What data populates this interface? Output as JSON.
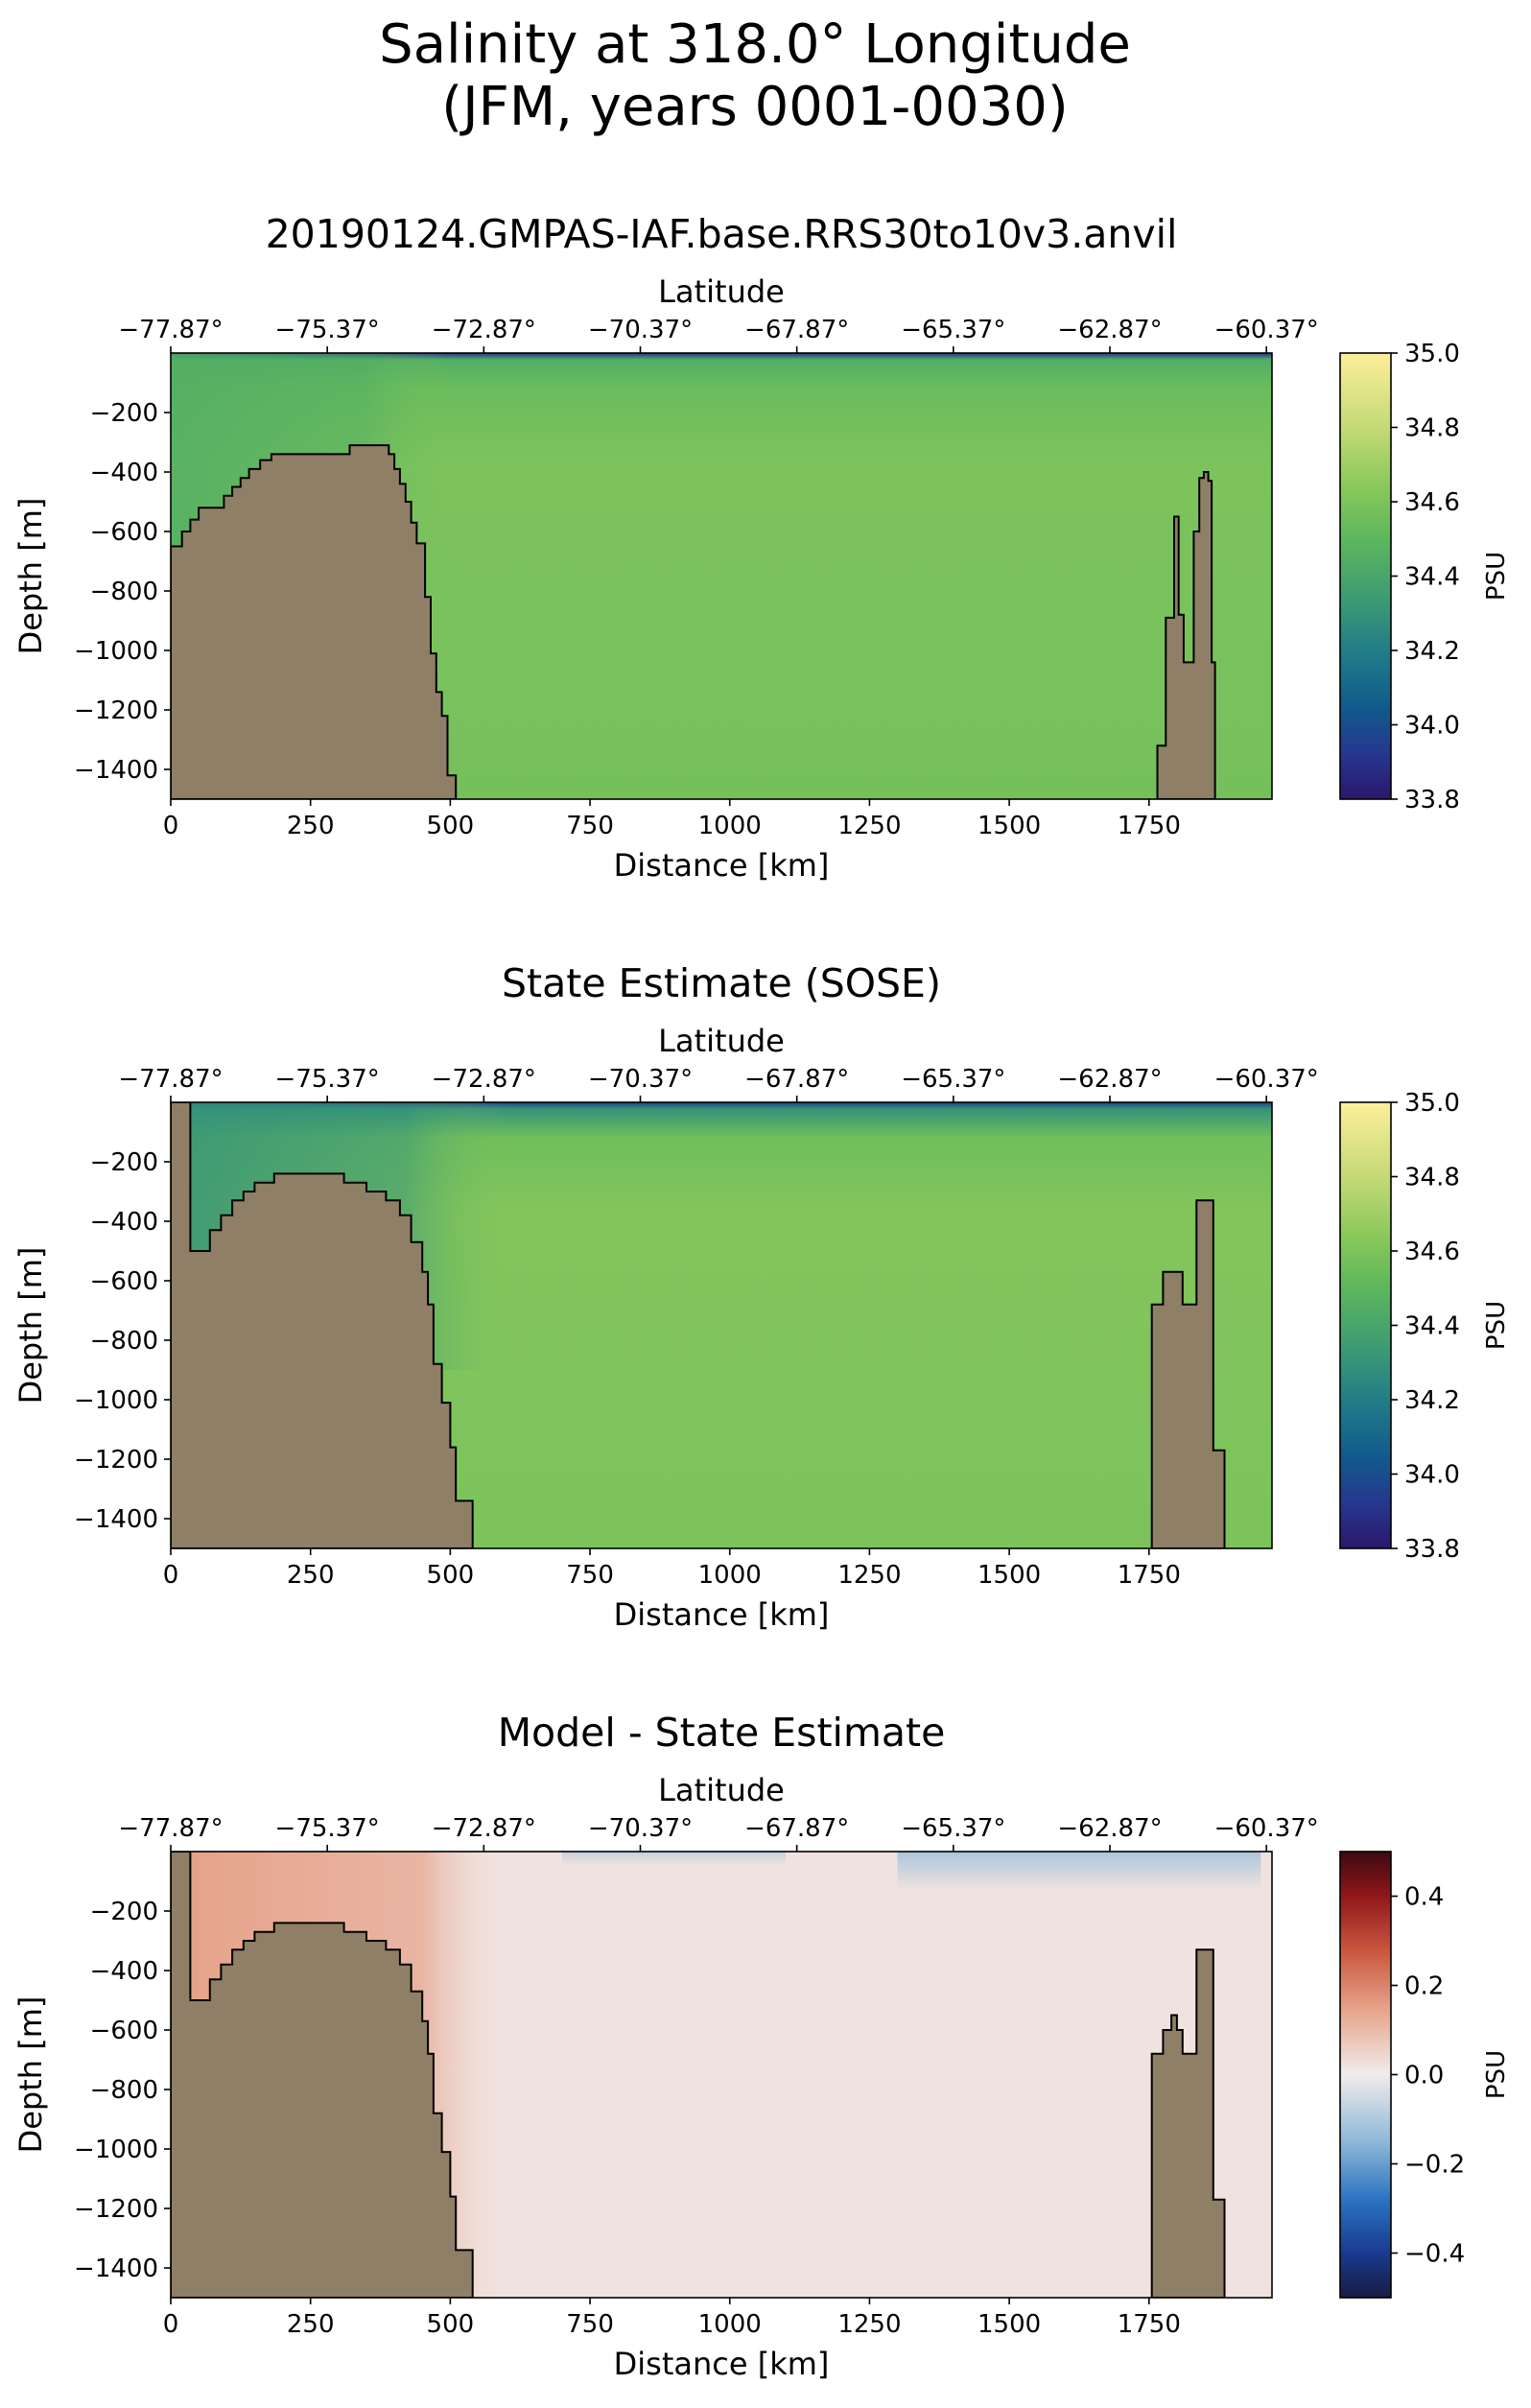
{
  "figure": {
    "title_line1": "Salinity at 318.0° Longitude",
    "title_line2": "(JFM, years 0001-0030)"
  },
  "colors": {
    "land": "#8f7f66",
    "haline_low": "#2a186c",
    "haline_mid": "#3d9b74",
    "haline_field": "#6bc25f",
    "haline_high": "#fdef9a",
    "balance_low": "#181c43",
    "balance_mid": "#f1ecec",
    "balance_high": "#3c0912"
  },
  "chart_data": [
    {
      "type": "heatmap",
      "title": "20190124.GMPAS-IAF.base.RRS30to10v3.anvil",
      "xlabel": "Distance [km]",
      "ylabel": "Depth [m]",
      "top_xlabel": "Latitude",
      "xlim": [
        0,
        1970
      ],
      "ylim": [
        -1500,
        0
      ],
      "x_ticks": [
        0,
        250,
        500,
        750,
        1000,
        1250,
        1500,
        1750
      ],
      "y_ticks": [
        -200,
        -400,
        -600,
        -800,
        -1000,
        -1200,
        -1400
      ],
      "top_ticks": [
        {
          "x": 0,
          "label": "-77.87°"
        },
        {
          "x": 280,
          "label": "-75.37°"
        },
        {
          "x": 560,
          "label": "-72.87°"
        },
        {
          "x": 840,
          "label": "-70.37°"
        },
        {
          "x": 1120,
          "label": "-67.87°"
        },
        {
          "x": 1400,
          "label": "-65.37°"
        },
        {
          "x": 1680,
          "label": "-62.87°"
        },
        {
          "x": 1960,
          "label": "-60.37°"
        }
      ],
      "colorbar": {
        "label": "PSU",
        "colormap": "haline",
        "vmin": 33.8,
        "vmax": 35.0,
        "ticks": [
          33.8,
          34.0,
          34.2,
          34.4,
          34.6,
          34.8,
          35.0
        ],
        "tick_labels": [
          "33.8",
          "34.0",
          "34.2",
          "34.4",
          "34.6",
          "34.8",
          "35.0"
        ]
      },
      "field": {
        "surface_value": 33.9,
        "subsurface_value": 34.45,
        "interior_value": 34.6,
        "shelf_value": 34.45,
        "shelf_extent_km": 500
      },
      "bathymetry": [
        {
          "x": 0,
          "depth": -1500
        },
        {
          "x": 0,
          "depth": -650
        },
        {
          "x": 20,
          "depth": -650
        },
        {
          "x": 20,
          "depth": -600
        },
        {
          "x": 35,
          "depth": -600
        },
        {
          "x": 35,
          "depth": -560
        },
        {
          "x": 50,
          "depth": -560
        },
        {
          "x": 50,
          "depth": -520
        },
        {
          "x": 95,
          "depth": -520
        },
        {
          "x": 95,
          "depth": -480
        },
        {
          "x": 110,
          "depth": -480
        },
        {
          "x": 110,
          "depth": -450
        },
        {
          "x": 125,
          "depth": -450
        },
        {
          "x": 125,
          "depth": -420
        },
        {
          "x": 140,
          "depth": -420
        },
        {
          "x": 140,
          "depth": -390
        },
        {
          "x": 160,
          "depth": -390
        },
        {
          "x": 160,
          "depth": -360
        },
        {
          "x": 180,
          "depth": -360
        },
        {
          "x": 180,
          "depth": -340
        },
        {
          "x": 320,
          "depth": -340
        },
        {
          "x": 320,
          "depth": -310
        },
        {
          "x": 390,
          "depth": -310
        },
        {
          "x": 390,
          "depth": -340
        },
        {
          "x": 400,
          "depth": -340
        },
        {
          "x": 400,
          "depth": -390
        },
        {
          "x": 410,
          "depth": -390
        },
        {
          "x": 410,
          "depth": -440
        },
        {
          "x": 420,
          "depth": -440
        },
        {
          "x": 420,
          "depth": -500
        },
        {
          "x": 430,
          "depth": -500
        },
        {
          "x": 430,
          "depth": -570
        },
        {
          "x": 440,
          "depth": -570
        },
        {
          "x": 440,
          "depth": -640
        },
        {
          "x": 455,
          "depth": -640
        },
        {
          "x": 455,
          "depth": -820
        },
        {
          "x": 465,
          "depth": -820
        },
        {
          "x": 465,
          "depth": -1010
        },
        {
          "x": 475,
          "depth": -1010
        },
        {
          "x": 475,
          "depth": -1140
        },
        {
          "x": 485,
          "depth": -1140
        },
        {
          "x": 485,
          "depth": -1220
        },
        {
          "x": 495,
          "depth": -1220
        },
        {
          "x": 495,
          "depth": -1420
        },
        {
          "x": 510,
          "depth": -1420
        },
        {
          "x": 510,
          "depth": -1500
        }
      ],
      "bathymetry_right": [
        {
          "x": 1765,
          "depth": -1500
        },
        {
          "x": 1765,
          "depth": -1320
        },
        {
          "x": 1780,
          "depth": -1320
        },
        {
          "x": 1780,
          "depth": -890
        },
        {
          "x": 1795,
          "depth": -890
        },
        {
          "x": 1795,
          "depth": -550
        },
        {
          "x": 1803,
          "depth": -550
        },
        {
          "x": 1803,
          "depth": -880
        },
        {
          "x": 1812,
          "depth": -880
        },
        {
          "x": 1812,
          "depth": -1040
        },
        {
          "x": 1830,
          "depth": -1040
        },
        {
          "x": 1830,
          "depth": -600
        },
        {
          "x": 1840,
          "depth": -600
        },
        {
          "x": 1840,
          "depth": -420
        },
        {
          "x": 1848,
          "depth": -420
        },
        {
          "x": 1848,
          "depth": -400
        },
        {
          "x": 1856,
          "depth": -400
        },
        {
          "x": 1856,
          "depth": -430
        },
        {
          "x": 1862,
          "depth": -430
        },
        {
          "x": 1862,
          "depth": -1040
        },
        {
          "x": 1868,
          "depth": -1040
        },
        {
          "x": 1868,
          "depth": -1500
        }
      ]
    },
    {
      "type": "heatmap",
      "title": "State Estimate (SOSE)",
      "xlabel": "Distance [km]",
      "ylabel": "Depth [m]",
      "top_xlabel": "Latitude",
      "xlim": [
        0,
        1970
      ],
      "ylim": [
        -1500,
        0
      ],
      "x_ticks": [
        0,
        250,
        500,
        750,
        1000,
        1250,
        1500,
        1750
      ],
      "y_ticks": [
        -200,
        -400,
        -600,
        -800,
        -1000,
        -1200,
        -1400
      ],
      "top_ticks": [
        {
          "x": 0,
          "label": "-77.87°"
        },
        {
          "x": 280,
          "label": "-75.37°"
        },
        {
          "x": 560,
          "label": "-72.87°"
        },
        {
          "x": 840,
          "label": "-70.37°"
        },
        {
          "x": 1120,
          "label": "-67.87°"
        },
        {
          "x": 1400,
          "label": "-65.37°"
        },
        {
          "x": 1680,
          "label": "-62.87°"
        },
        {
          "x": 1960,
          "label": "-60.37°"
        }
      ],
      "colorbar": {
        "label": "PSU",
        "colormap": "haline",
        "vmin": 33.8,
        "vmax": 35.0,
        "ticks": [
          33.8,
          34.0,
          34.2,
          34.4,
          34.6,
          34.8,
          35.0
        ],
        "tick_labels": [
          "33.8",
          "34.0",
          "34.2",
          "34.4",
          "34.6",
          "34.8",
          "35.0"
        ]
      },
      "field": {
        "surface_value": 33.95,
        "subsurface_value": 34.3,
        "interior_value": 34.62,
        "shelf_value": 34.3,
        "shelf_extent_km": 600
      },
      "bathymetry": [
        {
          "x": 0,
          "depth": -1500
        },
        {
          "x": 0,
          "depth": 0
        },
        {
          "x": 35,
          "depth": 0
        },
        {
          "x": 35,
          "depth": -500
        },
        {
          "x": 70,
          "depth": -500
        },
        {
          "x": 70,
          "depth": -430
        },
        {
          "x": 90,
          "depth": -430
        },
        {
          "x": 90,
          "depth": -380
        },
        {
          "x": 110,
          "depth": -380
        },
        {
          "x": 110,
          "depth": -330
        },
        {
          "x": 130,
          "depth": -330
        },
        {
          "x": 130,
          "depth": -300
        },
        {
          "x": 150,
          "depth": -300
        },
        {
          "x": 150,
          "depth": -270
        },
        {
          "x": 185,
          "depth": -270
        },
        {
          "x": 185,
          "depth": -240
        },
        {
          "x": 310,
          "depth": -240
        },
        {
          "x": 310,
          "depth": -270
        },
        {
          "x": 350,
          "depth": -270
        },
        {
          "x": 350,
          "depth": -300
        },
        {
          "x": 385,
          "depth": -300
        },
        {
          "x": 385,
          "depth": -330
        },
        {
          "x": 410,
          "depth": -330
        },
        {
          "x": 410,
          "depth": -380
        },
        {
          "x": 430,
          "depth": -380
        },
        {
          "x": 430,
          "depth": -470
        },
        {
          "x": 450,
          "depth": -470
        },
        {
          "x": 450,
          "depth": -570
        },
        {
          "x": 460,
          "depth": -570
        },
        {
          "x": 460,
          "depth": -680
        },
        {
          "x": 470,
          "depth": -680
        },
        {
          "x": 470,
          "depth": -880
        },
        {
          "x": 485,
          "depth": -880
        },
        {
          "x": 485,
          "depth": -1010
        },
        {
          "x": 500,
          "depth": -1010
        },
        {
          "x": 500,
          "depth": -1160
        },
        {
          "x": 510,
          "depth": -1160
        },
        {
          "x": 510,
          "depth": -1340
        },
        {
          "x": 540,
          "depth": -1340
        },
        {
          "x": 540,
          "depth": -1500
        }
      ],
      "bathymetry_right": [
        {
          "x": 1755,
          "depth": -1500
        },
        {
          "x": 1755,
          "depth": -680
        },
        {
          "x": 1775,
          "depth": -680
        },
        {
          "x": 1775,
          "depth": -570
        },
        {
          "x": 1810,
          "depth": -570
        },
        {
          "x": 1810,
          "depth": -680
        },
        {
          "x": 1835,
          "depth": -680
        },
        {
          "x": 1835,
          "depth": -330
        },
        {
          "x": 1865,
          "depth": -330
        },
        {
          "x": 1865,
          "depth": -1170
        },
        {
          "x": 1885,
          "depth": -1170
        },
        {
          "x": 1885,
          "depth": -1500
        }
      ]
    },
    {
      "type": "heatmap",
      "title": "Model - State Estimate",
      "xlabel": "Distance [km]",
      "ylabel": "Depth [m]",
      "top_xlabel": "Latitude",
      "xlim": [
        0,
        1970
      ],
      "ylim": [
        -1500,
        0
      ],
      "x_ticks": [
        0,
        250,
        500,
        750,
        1000,
        1250,
        1500,
        1750
      ],
      "y_ticks": [
        -200,
        -400,
        -600,
        -800,
        -1000,
        -1200,
        -1400
      ],
      "top_ticks": [
        {
          "x": 0,
          "label": "-77.87°"
        },
        {
          "x": 280,
          "label": "-75.37°"
        },
        {
          "x": 560,
          "label": "-72.87°"
        },
        {
          "x": 840,
          "label": "-70.37°"
        },
        {
          "x": 1120,
          "label": "-67.87°"
        },
        {
          "x": 1400,
          "label": "-65.37°"
        },
        {
          "x": 1680,
          "label": "-62.87°"
        },
        {
          "x": 1960,
          "label": "-60.37°"
        }
      ],
      "colorbar": {
        "label": "PSU",
        "colormap": "balance",
        "vmin": -0.5,
        "vmax": 0.5,
        "ticks": [
          -0.4,
          -0.2,
          0.0,
          0.2,
          0.4
        ],
        "tick_labels": [
          "−0.4",
          "−0.2",
          "0.0",
          "0.2",
          "0.4"
        ]
      },
      "field": {
        "shelf_anomaly": 0.15,
        "interior_anomaly": 0.02,
        "near_surface_anomaly": -0.12,
        "shelf_extent_km": 600
      },
      "bathymetry": [
        {
          "x": 0,
          "depth": -1500
        },
        {
          "x": 0,
          "depth": 0
        },
        {
          "x": 35,
          "depth": 0
        },
        {
          "x": 35,
          "depth": -500
        },
        {
          "x": 70,
          "depth": -500
        },
        {
          "x": 70,
          "depth": -430
        },
        {
          "x": 90,
          "depth": -430
        },
        {
          "x": 90,
          "depth": -380
        },
        {
          "x": 110,
          "depth": -380
        },
        {
          "x": 110,
          "depth": -330
        },
        {
          "x": 130,
          "depth": -330
        },
        {
          "x": 130,
          "depth": -300
        },
        {
          "x": 150,
          "depth": -300
        },
        {
          "x": 150,
          "depth": -270
        },
        {
          "x": 185,
          "depth": -270
        },
        {
          "x": 185,
          "depth": -240
        },
        {
          "x": 310,
          "depth": -240
        },
        {
          "x": 310,
          "depth": -270
        },
        {
          "x": 350,
          "depth": -270
        },
        {
          "x": 350,
          "depth": -300
        },
        {
          "x": 385,
          "depth": -300
        },
        {
          "x": 385,
          "depth": -330
        },
        {
          "x": 410,
          "depth": -330
        },
        {
          "x": 410,
          "depth": -380
        },
        {
          "x": 430,
          "depth": -380
        },
        {
          "x": 430,
          "depth": -470
        },
        {
          "x": 450,
          "depth": -470
        },
        {
          "x": 450,
          "depth": -570
        },
        {
          "x": 460,
          "depth": -570
        },
        {
          "x": 460,
          "depth": -680
        },
        {
          "x": 470,
          "depth": -680
        },
        {
          "x": 470,
          "depth": -880
        },
        {
          "x": 485,
          "depth": -880
        },
        {
          "x": 485,
          "depth": -1010
        },
        {
          "x": 500,
          "depth": -1010
        },
        {
          "x": 500,
          "depth": -1160
        },
        {
          "x": 510,
          "depth": -1160
        },
        {
          "x": 510,
          "depth": -1340
        },
        {
          "x": 540,
          "depth": -1340
        },
        {
          "x": 540,
          "depth": -1500
        }
      ],
      "bathymetry_right": [
        {
          "x": 1755,
          "depth": -1500
        },
        {
          "x": 1755,
          "depth": -680
        },
        {
          "x": 1775,
          "depth": -680
        },
        {
          "x": 1775,
          "depth": -600
        },
        {
          "x": 1790,
          "depth": -600
        },
        {
          "x": 1790,
          "depth": -550
        },
        {
          "x": 1800,
          "depth": -550
        },
        {
          "x": 1800,
          "depth": -600
        },
        {
          "x": 1810,
          "depth": -600
        },
        {
          "x": 1810,
          "depth": -680
        },
        {
          "x": 1835,
          "depth": -680
        },
        {
          "x": 1835,
          "depth": -330
        },
        {
          "x": 1865,
          "depth": -330
        },
        {
          "x": 1865,
          "depth": -1170
        },
        {
          "x": 1885,
          "depth": -1170
        },
        {
          "x": 1885,
          "depth": -1500
        }
      ]
    }
  ]
}
